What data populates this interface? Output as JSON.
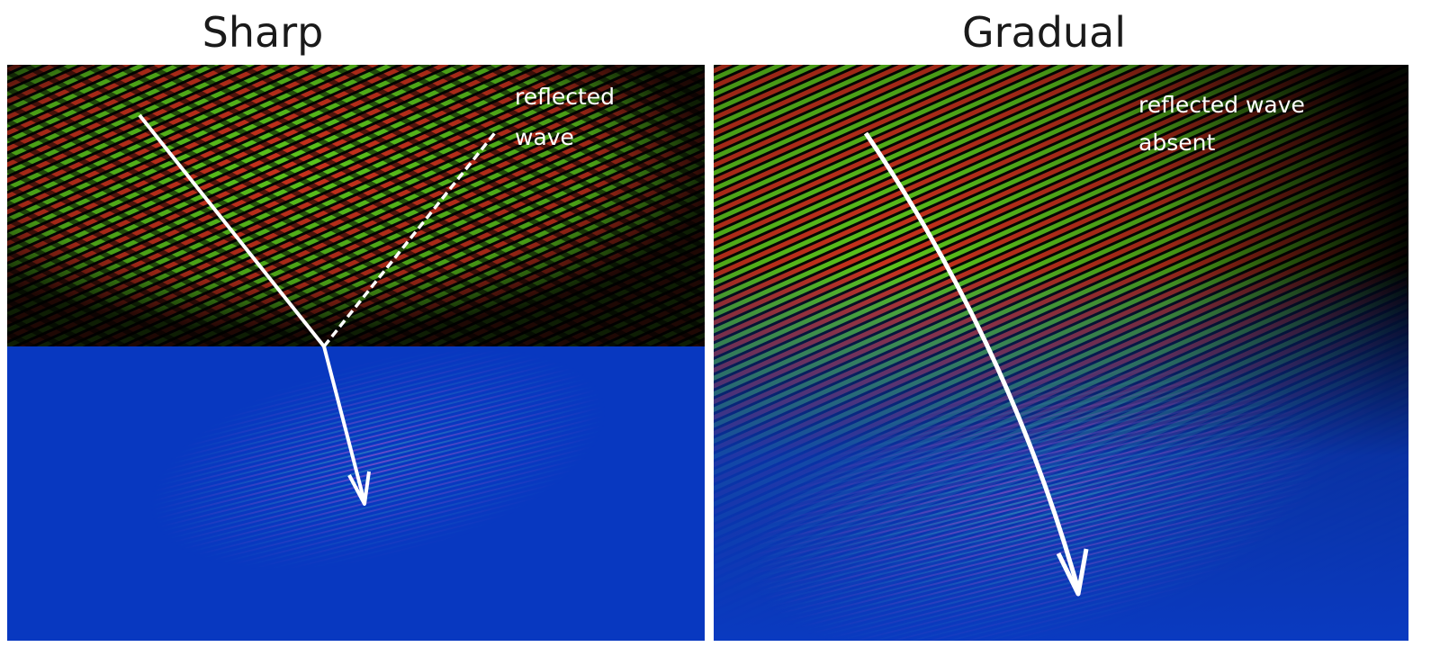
{
  "panels": [
    {
      "title": "Sharp",
      "annotation": [
        "reflected",
        "wave"
      ]
    },
    {
      "title": "Gradual",
      "annotation": [
        "reflected wave",
        "absent"
      ]
    }
  ]
}
